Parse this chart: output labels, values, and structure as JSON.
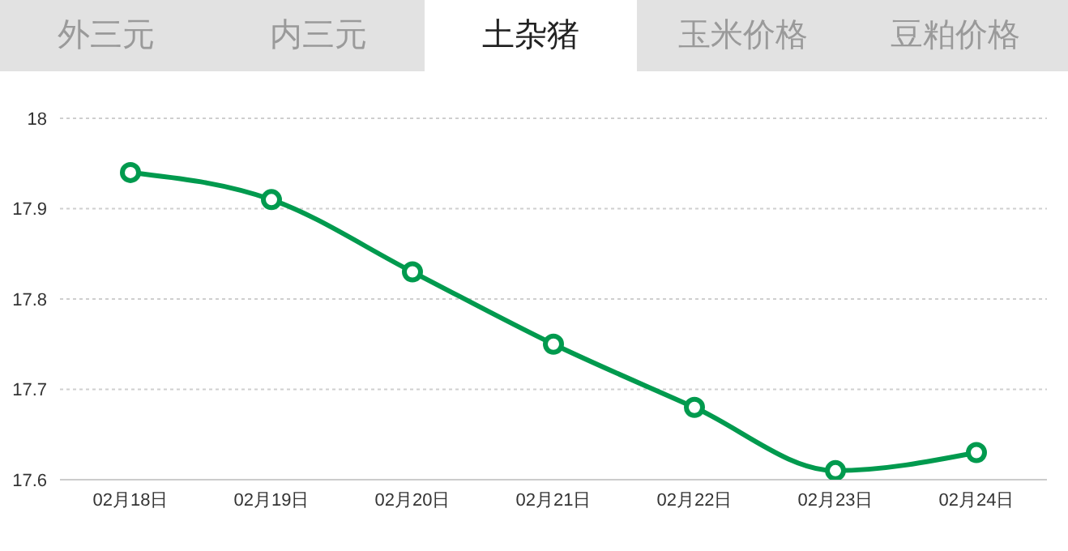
{
  "chart_data": {
    "type": "line",
    "title": "土杂猪",
    "annotations": [
      "外三元",
      "内三元",
      "玉米价格",
      "豆粕价格"
    ],
    "categories": [
      "02月18日",
      "02月19日",
      "02月20日",
      "02月21日",
      "02月22日",
      "02月23日",
      "02月24日"
    ],
    "series": [
      {
        "color": "#009a4e",
        "values": [
          17.94,
          17.91,
          17.83,
          17.75,
          17.68,
          17.61,
          17.63
        ]
      }
    ],
    "ylim": [
      17.6,
      18
    ],
    "yticks": [
      17.6,
      17.7,
      17.8,
      17.9,
      18
    ],
    "grid": "y",
    "marker": "circle",
    "line_style": "solid"
  }
}
